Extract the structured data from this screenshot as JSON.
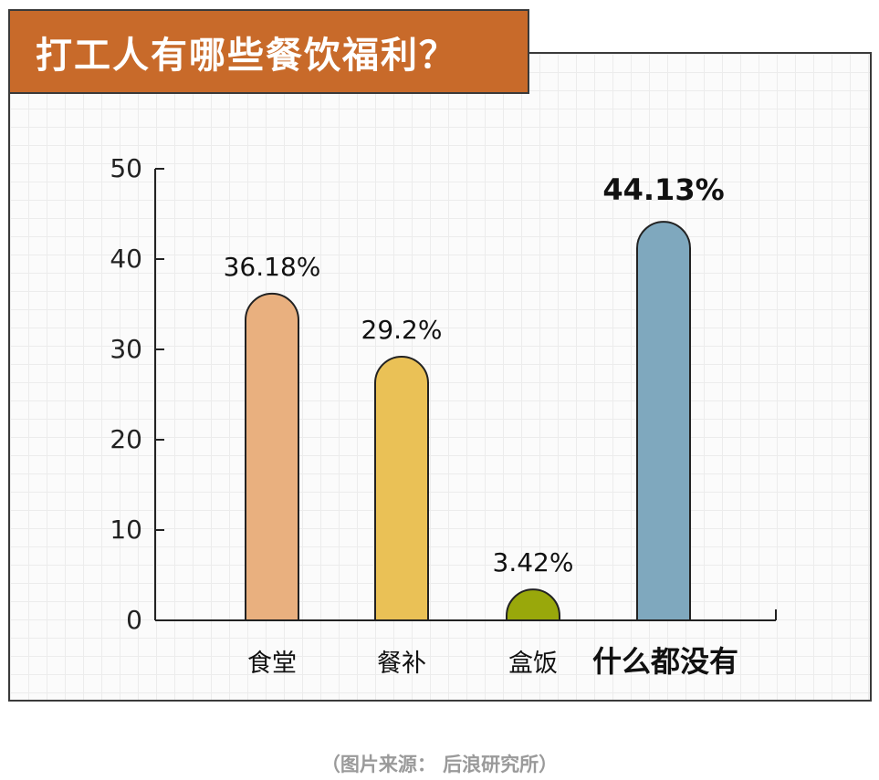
{
  "chart_data": {
    "type": "bar",
    "title": "打工人有哪些餐饮福利？",
    "categories": [
      "食堂",
      "餐补",
      "盒饭",
      "什么都没有"
    ],
    "values": [
      36.18,
      29.2,
      3.42,
      44.13
    ],
    "value_labels": [
      "36.18%",
      "29.2%",
      "3.42%",
      "44.13%"
    ],
    "colors": [
      "#e9b07f",
      "#eac156",
      "#99a80b",
      "#7fa8be"
    ],
    "highlight_index": 3,
    "yticks": [
      0,
      10,
      20,
      30,
      40,
      50
    ],
    "ylim": [
      0,
      50
    ],
    "xlabel": "",
    "ylabel": "",
    "grid": true
  },
  "source": "（图片来源： 后浪研究所）"
}
